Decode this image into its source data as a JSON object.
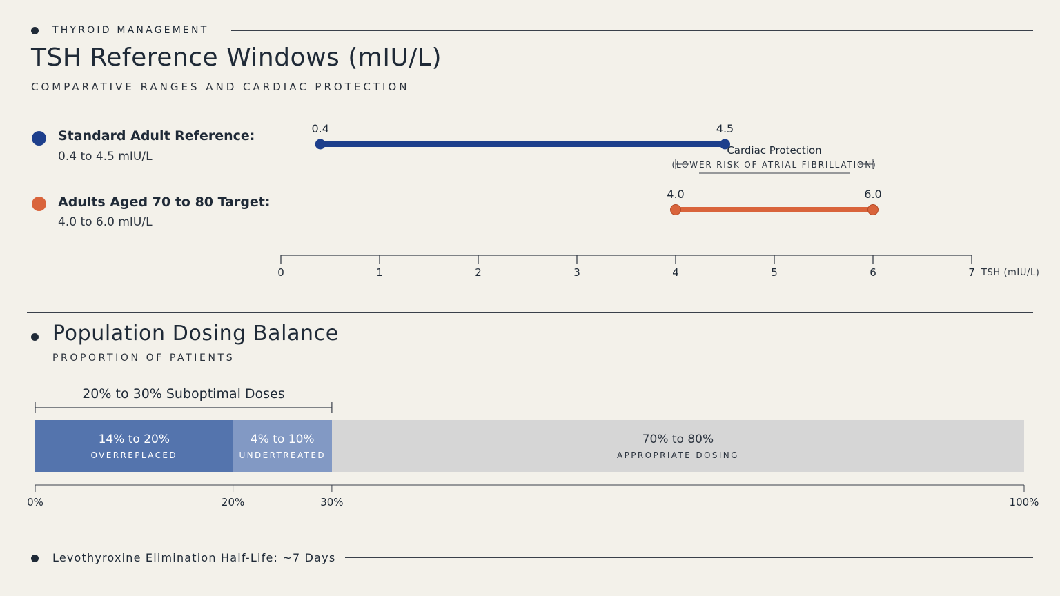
{
  "header": {
    "kicker": "THYROID MANAGEMENT",
    "title": "TSH Reference Windows (mIU/L)",
    "subtitle": "COMPARATIVE RANGES AND CARDIAC PROTECTION"
  },
  "legend": [
    {
      "title": "Standard Adult Reference:",
      "sub": "0.4 to 4.5 mIU/L",
      "color": "#1d3f8c"
    },
    {
      "title": "Adults Aged 70 to 80 Target:",
      "sub": "4.0 to 6.0 mIU/L",
      "color": "#d9643b"
    }
  ],
  "section2": {
    "title": "Population Dosing Balance",
    "subtitle": "PROPORTION OF PATIENTS"
  },
  "footer": {
    "text": "Levothyroxine Elimination Half-Life: ~7 Days"
  },
  "chart_data": [
    {
      "type": "range",
      "title": "TSH Reference Windows (mIU/L)",
      "xlabel": "TSH (mIU/L)",
      "xlim": [
        0,
        7
      ],
      "ticks": [
        "0",
        "1",
        "2",
        "3",
        "4",
        "5",
        "6",
        "7"
      ],
      "series": [
        {
          "name": "Standard Adult Reference",
          "start": 0.4,
          "end": 4.5,
          "start_label": "0.4",
          "end_label": "4.5",
          "color": "#1d3f8c"
        },
        {
          "name": "Adults Aged 70 to 80 Target",
          "start": 4.0,
          "end": 6.0,
          "start_label": "4.0",
          "end_label": "6.0",
          "color": "#d9643b"
        }
      ],
      "annotation": {
        "title": "Cardiac Protection",
        "note": "(LOWER RISK OF ATRIAL FIBRILLATION)"
      }
    },
    {
      "type": "bar",
      "title": "Population Dosing Balance",
      "subtitle": "PROPORTION OF PATIENTS",
      "bracket": {
        "label": "20% to 30% Suboptimal Doses",
        "from": 0,
        "to": 30
      },
      "segments": [
        {
          "value_label": "14% to 20%",
          "label": "OVERREPLACED",
          "start": 0,
          "end": 20,
          "color": "#5474ad",
          "text_color": "#ffffff"
        },
        {
          "value_label": "4% to 10%",
          "label": "UNDERTREATED",
          "start": 20,
          "end": 30,
          "color": "#8299c4",
          "text_color": "#ffffff"
        },
        {
          "value_label": "70% to 80%",
          "label": "APPROPRIATE DOSING",
          "start": 30,
          "end": 100,
          "color": "#d6d6d6",
          "text_color": "#2d3540"
        }
      ],
      "ticks": [
        "0%",
        "20%",
        "30%",
        "100%"
      ],
      "tick_values": [
        0,
        20,
        30,
        100
      ]
    }
  ]
}
